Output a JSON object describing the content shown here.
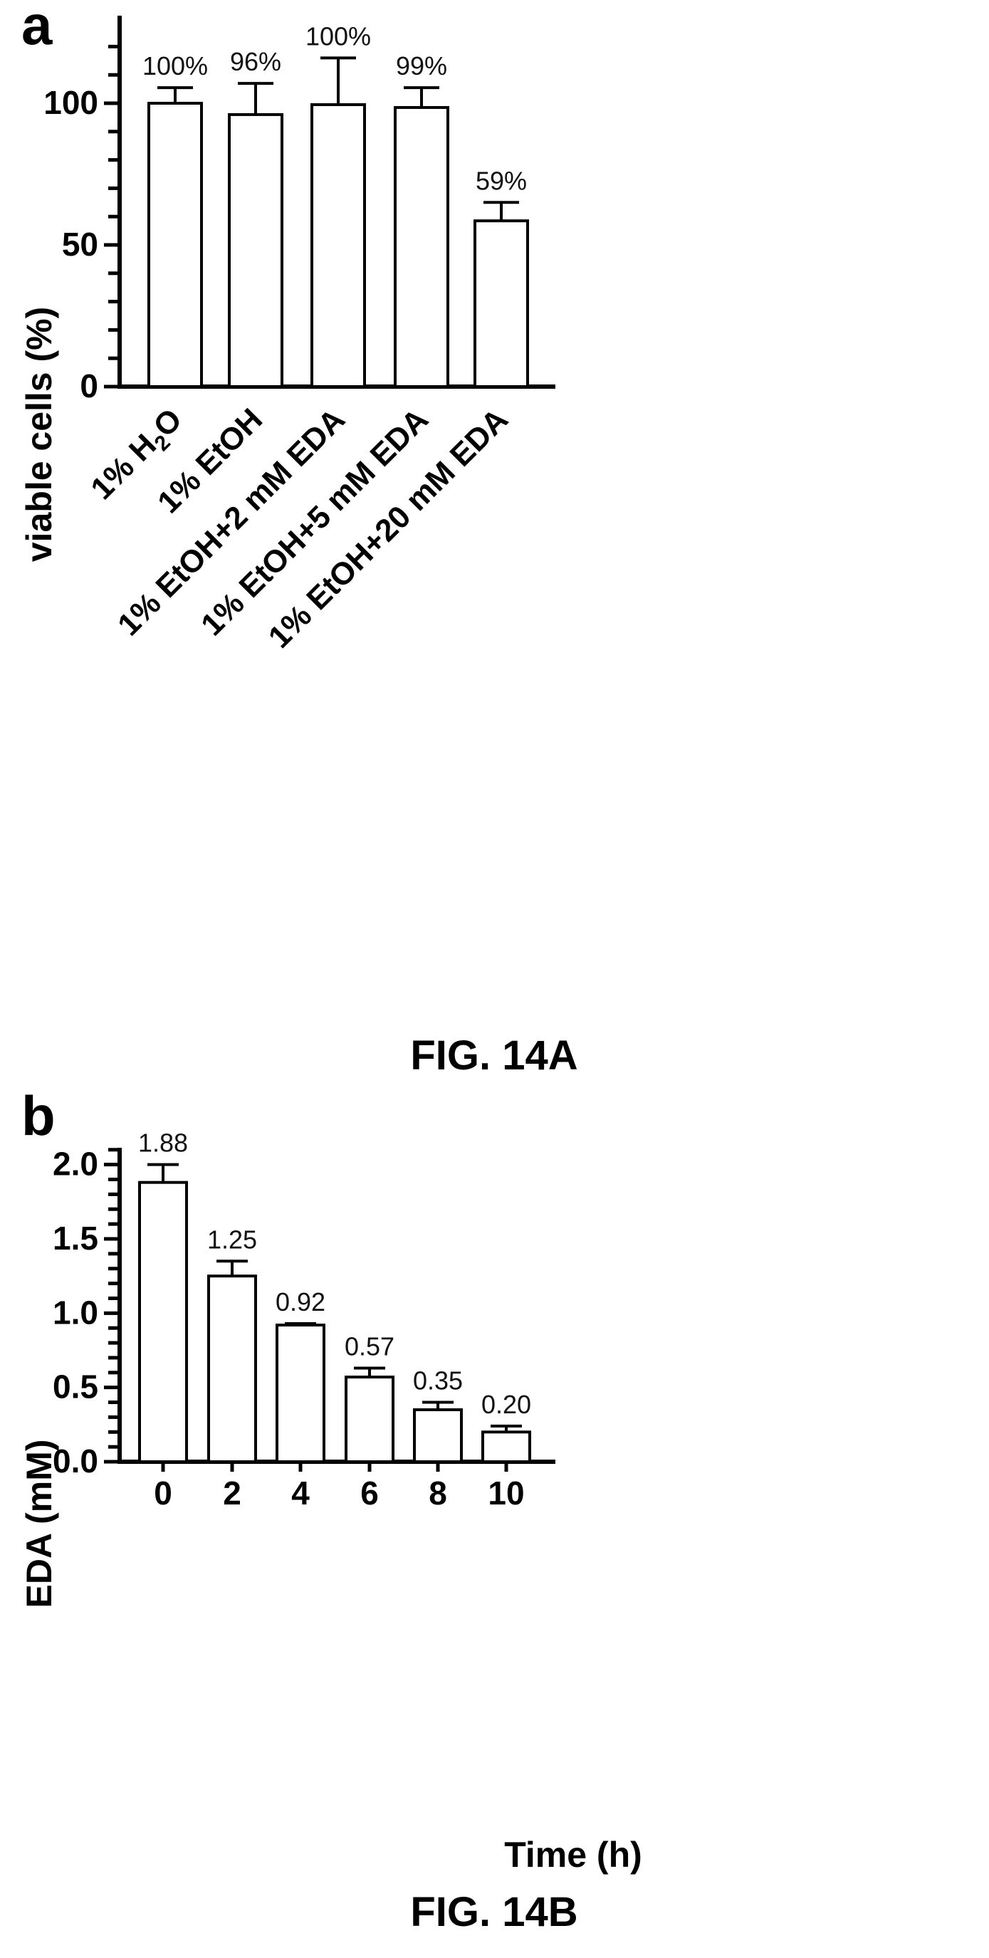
{
  "chart_data": [
    {
      "type": "bar",
      "panel": "a",
      "caption": "FIG. 14A",
      "ylabel": "viable cells (%)",
      "xlabel": "",
      "ylim": [
        0,
        125
      ],
      "yticks": [
        0,
        50,
        100
      ],
      "categories": [
        {
          "pre": "1% H",
          "sub": "2",
          "post": "O"
        },
        {
          "pre": "1% EtOH",
          "sub": "",
          "post": ""
        },
        {
          "pre": "1% EtOH+2 mM EDA",
          "sub": "",
          "post": ""
        },
        {
          "pre": "1% EtOH+5 mM EDA",
          "sub": "",
          "post": ""
        },
        {
          "pre": "1% EtOH+20 mM EDA",
          "sub": "",
          "post": ""
        }
      ],
      "values": [
        100,
        96,
        99.5,
        98.5,
        58.5
      ],
      "errors": [
        5.5,
        11,
        16.5,
        7,
        6.5
      ],
      "data_labels": [
        "100%",
        "96%",
        "100%",
        "99%",
        "59%"
      ]
    },
    {
      "type": "bar",
      "panel": "b",
      "caption": "FIG. 14B",
      "ylabel": "EDA (mM)",
      "xlabel": "Time (h)",
      "ylim": [
        0,
        2.3
      ],
      "yticks": [
        "0.0",
        "0.5",
        "1.0",
        "1.5",
        "2.0"
      ],
      "categories": [
        "0",
        "2",
        "4",
        "6",
        "8",
        "10"
      ],
      "values": [
        1.88,
        1.25,
        0.92,
        0.57,
        0.35,
        0.2
      ],
      "errors": [
        0.12,
        0.1,
        0.01,
        0.06,
        0.05,
        0.04
      ],
      "data_labels": [
        "1.88",
        "1.25",
        "0.92",
        "0.57",
        "0.35",
        "0.20"
      ]
    }
  ]
}
